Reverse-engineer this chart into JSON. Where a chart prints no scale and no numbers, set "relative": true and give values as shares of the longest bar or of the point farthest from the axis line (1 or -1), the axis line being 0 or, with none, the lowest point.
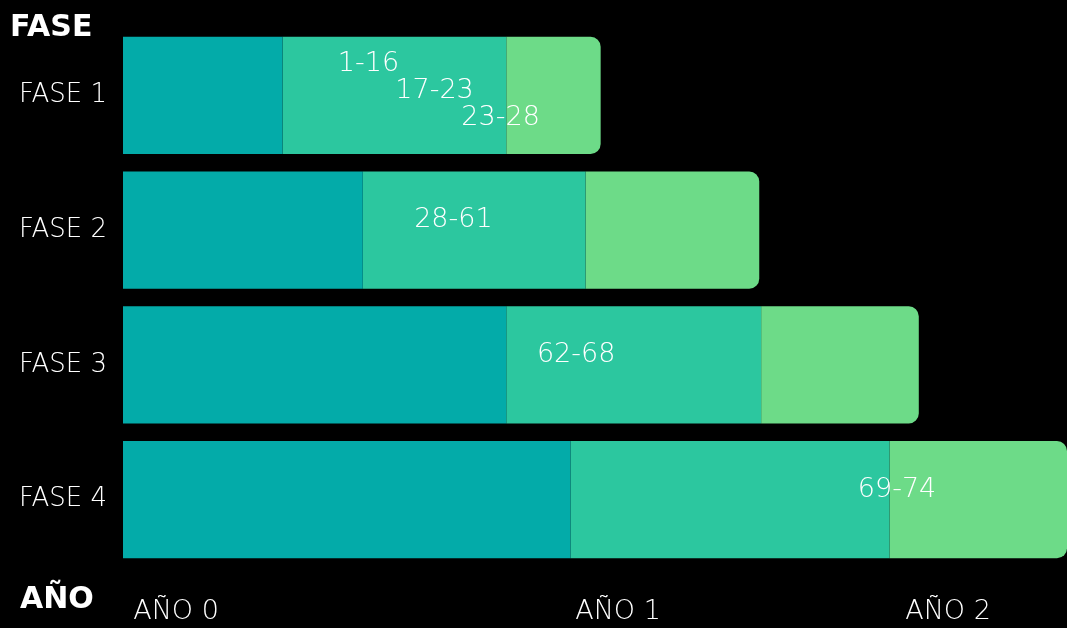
{
  "chart_data": {
    "type": "bar",
    "orientation": "horizontal",
    "stacked": true,
    "relative": true,
    "xlabel": "AÑO",
    "ylabel": "FASE",
    "categories": [
      "FASE 1",
      "FASE 2",
      "FASE 3",
      "FASE 4"
    ],
    "series": [
      {
        "color": "#03aba9",
        "values": [
          0.169,
          0.254,
          0.406,
          0.474
        ]
      },
      {
        "color": "#2cc79f",
        "values": [
          0.237,
          0.236,
          0.27,
          0.338
        ]
      },
      {
        "color": "#6ddb88",
        "values": [
          0.1,
          0.184,
          0.167,
          0.188
        ]
      }
    ],
    "annotations": [
      {
        "text": "1-16",
        "x": 0.26,
        "y": "FASE 1"
      },
      {
        "text": "17-23",
        "x": 0.33,
        "y": "FASE 1"
      },
      {
        "text": "23-28",
        "x": 0.4,
        "y": "FASE 1"
      },
      {
        "text": "28-61",
        "x": 0.35,
        "y": "FASE 2"
      },
      {
        "text": "62-68",
        "x": 0.48,
        "y": "FASE 3"
      },
      {
        "text": "69-74",
        "x": 0.82,
        "y": "FASE 4"
      },
      "AÑO 0",
      "AÑO 1",
      "AÑO 2"
    ],
    "legend": false
  }
}
